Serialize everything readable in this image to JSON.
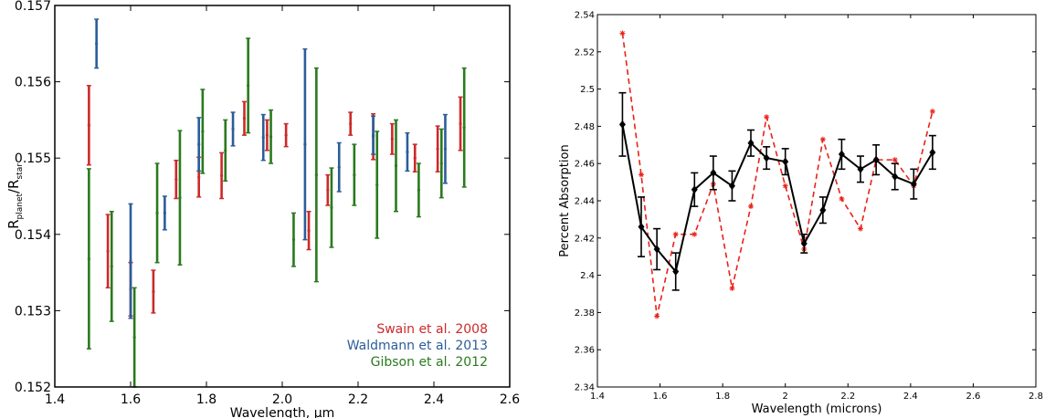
{
  "chart_data": [
    {
      "type": "scatter",
      "title": "",
      "xlabel": "Wavelength, µm",
      "ylabel_main": "R",
      "ylabel_sub1": "planet",
      "ylabel_mid": "/R",
      "ylabel_sub2": "star",
      "xlim": [
        1.4,
        2.6
      ],
      "ylim": [
        0.152,
        0.157
      ],
      "xticks": [
        "1.4",
        "1.6",
        "1.8",
        "2.0",
        "2.2",
        "2.4",
        "2.6"
      ],
      "yticks": [
        "0.152",
        "0.153",
        "0.154",
        "0.155",
        "0.156",
        "0.157"
      ],
      "grid": false,
      "legend_position": "bottom-right",
      "series": [
        {
          "name": "Swain et al. 2008",
          "color": "#cc2a2a",
          "x": [
            1.49,
            1.54,
            1.6,
            1.66,
            1.72,
            1.78,
            1.84,
            1.9,
            1.96,
            2.01,
            2.07,
            2.12,
            2.18,
            2.24,
            2.29,
            2.35,
            2.41,
            2.47
          ],
          "y": [
            0.15543,
            0.15378,
            0.15328,
            0.15325,
            0.15472,
            0.15475,
            0.15477,
            0.15552,
            0.1553,
            0.1553,
            0.15405,
            0.15458,
            0.15545,
            0.15528,
            0.15525,
            0.155,
            0.15512,
            0.15545
          ],
          "err": [
            0.00052,
            0.00048,
            0.00035,
            0.00028,
            0.00025,
            0.00026,
            0.0003,
            0.00022,
            0.0002,
            0.00015,
            0.00025,
            0.0002,
            0.00015,
            0.0003,
            0.0002,
            0.00018,
            0.0003,
            0.00035
          ]
        },
        {
          "name": "Waldmann et al. 2013",
          "color": "#2b5d9a",
          "x": [
            1.51,
            1.6,
            1.69,
            1.78,
            1.87,
            1.95,
            2.06,
            2.15,
            2.24,
            2.33,
            2.43
          ],
          "y": [
            0.1565,
            0.15365,
            0.15428,
            0.15518,
            0.15538,
            0.15527,
            0.15518,
            0.15488,
            0.1553,
            0.15508,
            0.15512
          ],
          "err": [
            0.00032,
            0.00075,
            0.00022,
            0.00035,
            0.00022,
            0.0003,
            0.00125,
            0.00032,
            0.00025,
            0.00025,
            0.00045
          ]
        },
        {
          "name": "Gibson et al. 2012",
          "color": "#2a7a1e",
          "x": [
            1.49,
            1.55,
            1.61,
            1.67,
            1.73,
            1.79,
            1.85,
            1.91,
            1.97,
            2.03,
            2.09,
            2.13,
            2.19,
            2.25,
            2.3,
            2.36,
            2.42,
            2.48
          ],
          "y": [
            0.15368,
            0.15358,
            0.15265,
            0.15428,
            0.15448,
            0.15535,
            0.1551,
            0.15595,
            0.15528,
            0.15393,
            0.15478,
            0.15435,
            0.15478,
            0.15465,
            0.1549,
            0.15458,
            0.15493,
            0.1554
          ]
        }
      ],
      "gibson_err": [
        0.00118,
        0.00072,
        0.00065,
        0.00065,
        0.00088,
        0.00055,
        0.0004,
        0.00062,
        0.00035,
        0.00035,
        0.0014,
        0.00052,
        0.0004,
        0.0007,
        0.0006,
        0.00035,
        0.00045,
        0.00078
      ]
    },
    {
      "type": "line",
      "title": "",
      "xlabel": "Wavelength (microns)",
      "ylabel": "Percent Absorption",
      "xlim": [
        1.4,
        2.8
      ],
      "ylim": [
        2.34,
        2.54
      ],
      "xticks": [
        "1.4",
        "1.6",
        "1.8",
        "2",
        "2.2",
        "2.4",
        "2.6",
        "2.8"
      ],
      "yticks": [
        "2.34",
        "2.36",
        "2.38",
        "2.4",
        "2.42",
        "2.44",
        "2.46",
        "2.48",
        "2.5",
        "2.52",
        "2.54"
      ],
      "grid": false,
      "series": [
        {
          "style": "solid-diamond-errorbars",
          "color": "#000000",
          "x": [
            1.48,
            1.54,
            1.59,
            1.65,
            1.71,
            1.77,
            1.83,
            1.89,
            1.94,
            2.0,
            2.06,
            2.12,
            2.18,
            2.24,
            2.29,
            2.35,
            2.41,
            2.47
          ],
          "y": [
            2.481,
            2.426,
            2.414,
            2.402,
            2.446,
            2.455,
            2.448,
            2.471,
            2.463,
            2.461,
            2.417,
            2.435,
            2.465,
            2.457,
            2.462,
            2.453,
            2.449,
            2.466
          ],
          "err": [
            0.017,
            0.016,
            0.011,
            0.01,
            0.009,
            0.009,
            0.008,
            0.007,
            0.006,
            0.007,
            0.005,
            0.007,
            0.008,
            0.007,
            0.008,
            0.007,
            0.008,
            0.009
          ]
        },
        {
          "style": "dashed-star",
          "color": "#e8221a",
          "x": [
            1.48,
            1.54,
            1.59,
            1.65,
            1.71,
            1.77,
            1.83,
            1.89,
            1.94,
            2.0,
            2.06,
            2.12,
            2.18,
            2.24,
            2.29,
            2.35,
            2.41,
            2.47
          ],
          "y": [
            2.53,
            2.454,
            2.378,
            2.422,
            2.422,
            2.449,
            2.393,
            2.437,
            2.485,
            2.448,
            2.414,
            2.473,
            2.441,
            2.425,
            2.462,
            2.462,
            2.448,
            2.488
          ]
        }
      ]
    }
  ]
}
